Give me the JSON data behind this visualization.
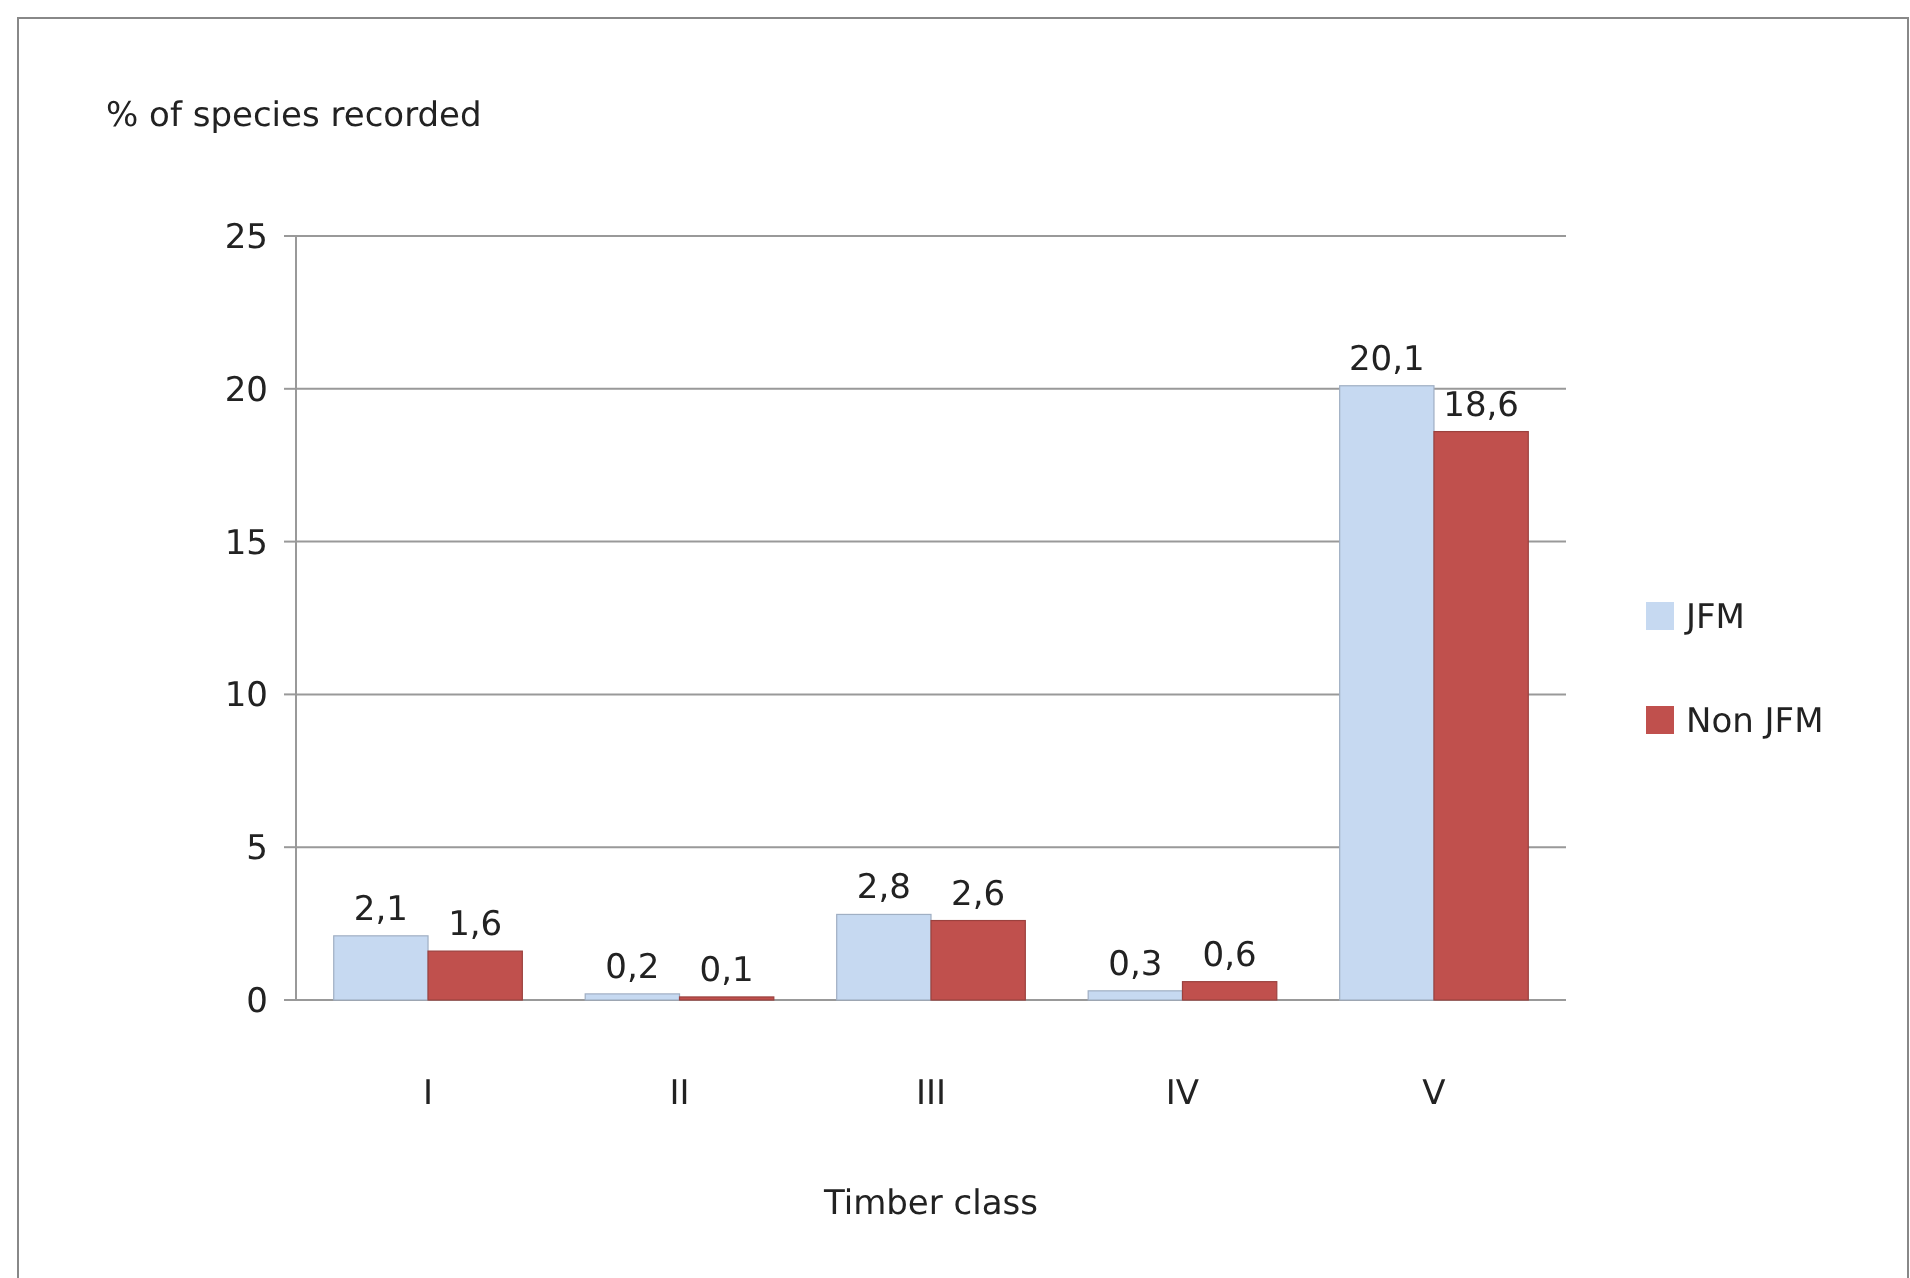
{
  "chart_data": {
    "type": "bar",
    "ylabel": "% of species recorded",
    "xlabel": "Timber class",
    "categories": [
      "I",
      "II",
      "III",
      "IV",
      "V"
    ],
    "series": [
      {
        "name": "JFM",
        "color": "#c6d9f1",
        "values": [
          2.1,
          0.2,
          2.8,
          0.3,
          20.1
        ],
        "value_labels": [
          "2,1",
          "0,2",
          "2,8",
          "0,3",
          "20,1"
        ]
      },
      {
        "name": "Non JFM",
        "color": "#c0504d",
        "values": [
          1.6,
          0.1,
          2.6,
          0.6,
          18.6
        ],
        "value_labels": [
          "1,6",
          "0,1",
          "2,6",
          "0,6",
          "18,6"
        ]
      }
    ],
    "ylim": [
      0,
      25
    ],
    "yticks": [
      0,
      5,
      10,
      15,
      20,
      25
    ],
    "grid": "y",
    "legend": "right"
  }
}
